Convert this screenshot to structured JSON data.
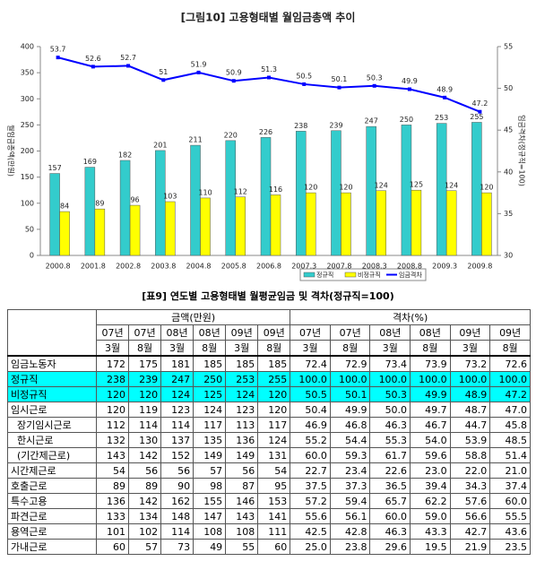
{
  "chart_data": {
    "type": "bar-line",
    "title": "[그림10] 고용형태별 월임금총액 추이",
    "y_label": "월임금총액(만원)",
    "y2_label": "임금격차(정규직=100)",
    "categories": [
      "2000.8",
      "2001.8",
      "2002.8",
      "2003.8",
      "2004.8",
      "2005.8",
      "2006.8",
      "2007.3",
      "2007.8",
      "2008.3",
      "2008.8",
      "2009.3",
      "2009.8"
    ],
    "series": [
      {
        "name": "정규직",
        "color": "#33cccc",
        "type": "bar",
        "values": [
          157,
          169,
          182,
          201,
          211,
          220,
          226,
          238,
          239,
          247,
          250,
          253,
          255
        ]
      },
      {
        "name": "비정규직",
        "color": "#ffff00",
        "type": "bar",
        "values": [
          84,
          89,
          96,
          103,
          110,
          112,
          116,
          120,
          120,
          124,
          125,
          124,
          120
        ]
      },
      {
        "name": "임금격차",
        "color": "#0000ff",
        "type": "line",
        "axis": "y2",
        "values": [
          53.7,
          52.6,
          52.7,
          51.0,
          51.9,
          50.9,
          51.3,
          50.5,
          50.1,
          50.3,
          49.9,
          48.9,
          47.2
        ]
      }
    ],
    "ylim": [
      0,
      400
    ],
    "yticks": [
      0,
      50,
      100,
      150,
      200,
      250,
      300,
      350,
      400
    ],
    "y2lim": [
      30,
      55
    ],
    "y2ticks": [
      30,
      35,
      40,
      45,
      50,
      55
    ]
  },
  "table": {
    "title": "[표9] 연도별 고용형태별 월평균임금 및 격차(정규직=100)",
    "groups": [
      "금액(만원)",
      "격차(%)"
    ],
    "years": [
      "07년",
      "07년",
      "08년",
      "08년",
      "09년",
      "09년",
      "07년",
      "07년",
      "08년",
      "08년",
      "09년",
      "09년"
    ],
    "months": [
      "3월",
      "8월",
      "3월",
      "8월",
      "3월",
      "8월",
      "3월",
      "8월",
      "3월",
      "8월",
      "3월",
      "8월"
    ],
    "rows": [
      [
        "임금노동자",
        "172",
        "175",
        "181",
        "185",
        "185",
        "185",
        "72.4",
        "72.9",
        "73.4",
        "73.9",
        "73.2",
        "72.6"
      ],
      [
        "정규직",
        "238",
        "239",
        "247",
        "250",
        "253",
        "255",
        "100.0",
        "100.0",
        "100.0",
        "100.0",
        "100.0",
        "100.0"
      ],
      [
        "비정규직",
        "120",
        "120",
        "124",
        "125",
        "124",
        "120",
        "50.5",
        "50.1",
        "50.3",
        "49.9",
        "48.9",
        "47.2"
      ],
      [
        "임시근로",
        "120",
        "119",
        "123",
        "124",
        "123",
        "120",
        "50.4",
        "49.9",
        "50.0",
        "49.7",
        "48.7",
        "47.0"
      ],
      [
        "  장기임시근로",
        "112",
        "114",
        "114",
        "117",
        "113",
        "117",
        "46.9",
        "46.8",
        "46.3",
        "46.7",
        "44.7",
        "45.8"
      ],
      [
        "  한시근로",
        "132",
        "130",
        "137",
        "135",
        "136",
        "124",
        "55.2",
        "54.4",
        "55.3",
        "54.0",
        "53.9",
        "48.5"
      ],
      [
        "  (기간제근로)",
        "143",
        "142",
        "152",
        "149",
        "149",
        "131",
        "60.0",
        "59.3",
        "61.7",
        "59.6",
        "58.8",
        "51.4"
      ],
      [
        "시간제근로",
        "54",
        "56",
        "56",
        "57",
        "56",
        "54",
        "22.7",
        "23.4",
        "22.6",
        "23.0",
        "22.0",
        "21.0"
      ],
      [
        "호출근로",
        "89",
        "89",
        "90",
        "98",
        "87",
        "95",
        "37.5",
        "37.3",
        "36.5",
        "39.4",
        "34.3",
        "37.4"
      ],
      [
        "특수고용",
        "136",
        "142",
        "162",
        "155",
        "146",
        "153",
        "57.2",
        "59.4",
        "65.7",
        "62.2",
        "57.6",
        "60.0"
      ],
      [
        "파견근로",
        "133",
        "134",
        "148",
        "147",
        "143",
        "141",
        "55.6",
        "56.1",
        "60.0",
        "59.0",
        "56.6",
        "55.5"
      ],
      [
        "용역근로",
        "101",
        "102",
        "114",
        "108",
        "108",
        "111",
        "42.5",
        "42.8",
        "46.3",
        "43.3",
        "42.7",
        "43.6"
      ],
      [
        "가내근로",
        "60",
        "57",
        "73",
        "49",
        "55",
        "60",
        "25.0",
        "23.8",
        "29.6",
        "19.5",
        "21.9",
        "23.5"
      ]
    ]
  }
}
